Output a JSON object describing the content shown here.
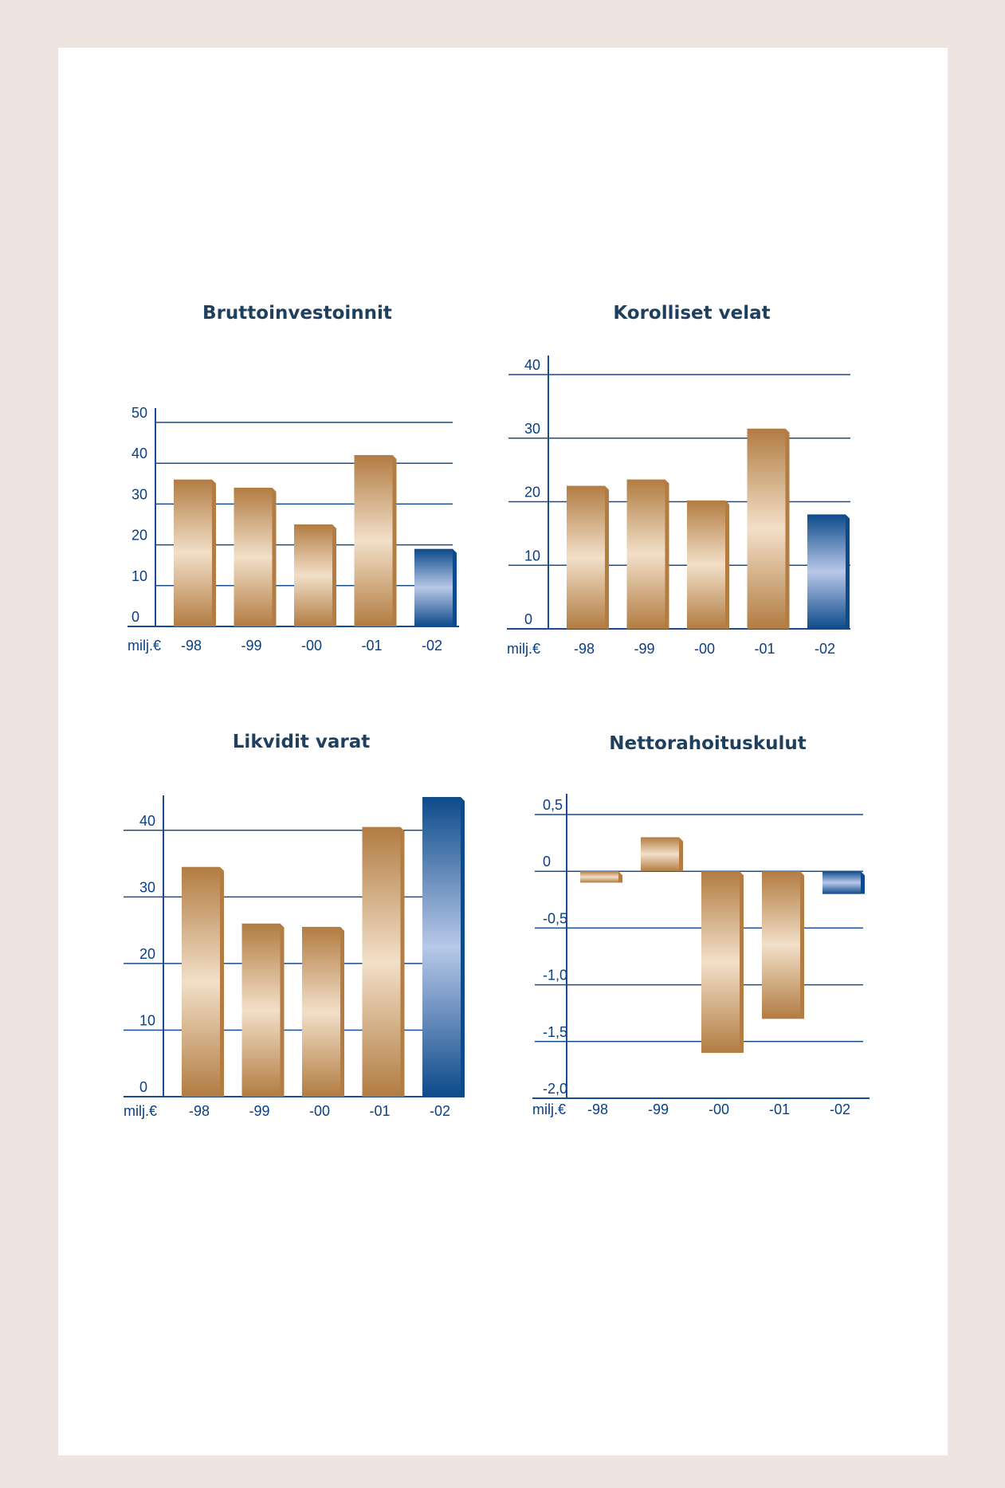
{
  "colors": {
    "axis": "#1a4c8c",
    "text": "#0b3f82",
    "title": "#1f3f5f",
    "bronze_dark": "#b27c42",
    "bronze_light": "#f2dfc8",
    "blue_dark": "#0d4a8a",
    "blue_light": "#b8c8e8"
  },
  "chart_data": [
    {
      "type": "bar",
      "title": "Bruttoinvestoinnit",
      "unit_label": "milj.€",
      "categories": [
        "-98",
        "-99",
        "-00",
        "-01",
        "-02"
      ],
      "values": [
        36,
        34,
        25,
        42,
        19
      ],
      "highlight_index": 4,
      "ylim": [
        0,
        50
      ],
      "yticks": [
        0,
        10,
        20,
        30,
        40,
        50
      ],
      "ytick_labels": [
        "0",
        "10",
        "20",
        "30",
        "40",
        "50"
      ],
      "grid": true
    },
    {
      "type": "bar",
      "title": "Korolliset velat",
      "unit_label": "milj.€",
      "categories": [
        "-98",
        "-99",
        "-00",
        "-01",
        "-02"
      ],
      "values": [
        22.5,
        23.5,
        20.2,
        31.5,
        18
      ],
      "highlight_index": 4,
      "ylim": [
        0,
        40
      ],
      "yticks": [
        0,
        10,
        20,
        30,
        40
      ],
      "ytick_labels": [
        "0",
        "10",
        "20",
        "30",
        "40"
      ],
      "grid": true
    },
    {
      "type": "bar",
      "title": "Likvidit varat",
      "unit_label": "milj.€",
      "categories": [
        "-98",
        "-99",
        "-00",
        "-01",
        "-02"
      ],
      "values": [
        34.5,
        26,
        25.5,
        40.5,
        45
      ],
      "highlight_index": 4,
      "ylim": [
        0,
        45
      ],
      "yticks": [
        0,
        10,
        20,
        30,
        40
      ],
      "ytick_labels": [
        "0",
        "10",
        "20",
        "30",
        "40"
      ],
      "grid": true
    },
    {
      "type": "bar",
      "title": "Nettorahoituskulut",
      "unit_label": "milj.€",
      "categories": [
        "-98",
        "-99",
        "-00",
        "-01",
        "-02"
      ],
      "values": [
        -0.1,
        0.3,
        -1.6,
        -1.3,
        -0.2
      ],
      "highlight_index": 4,
      "ylim": [
        -2.0,
        0.5
      ],
      "yticks": [
        -2.0,
        -1.5,
        -1.0,
        -0.5,
        0,
        0.5
      ],
      "ytick_labels": [
        "-2,0",
        "-1,5",
        "-1,0",
        "-0,5",
        "0",
        "0,5"
      ],
      "grid": true
    }
  ]
}
